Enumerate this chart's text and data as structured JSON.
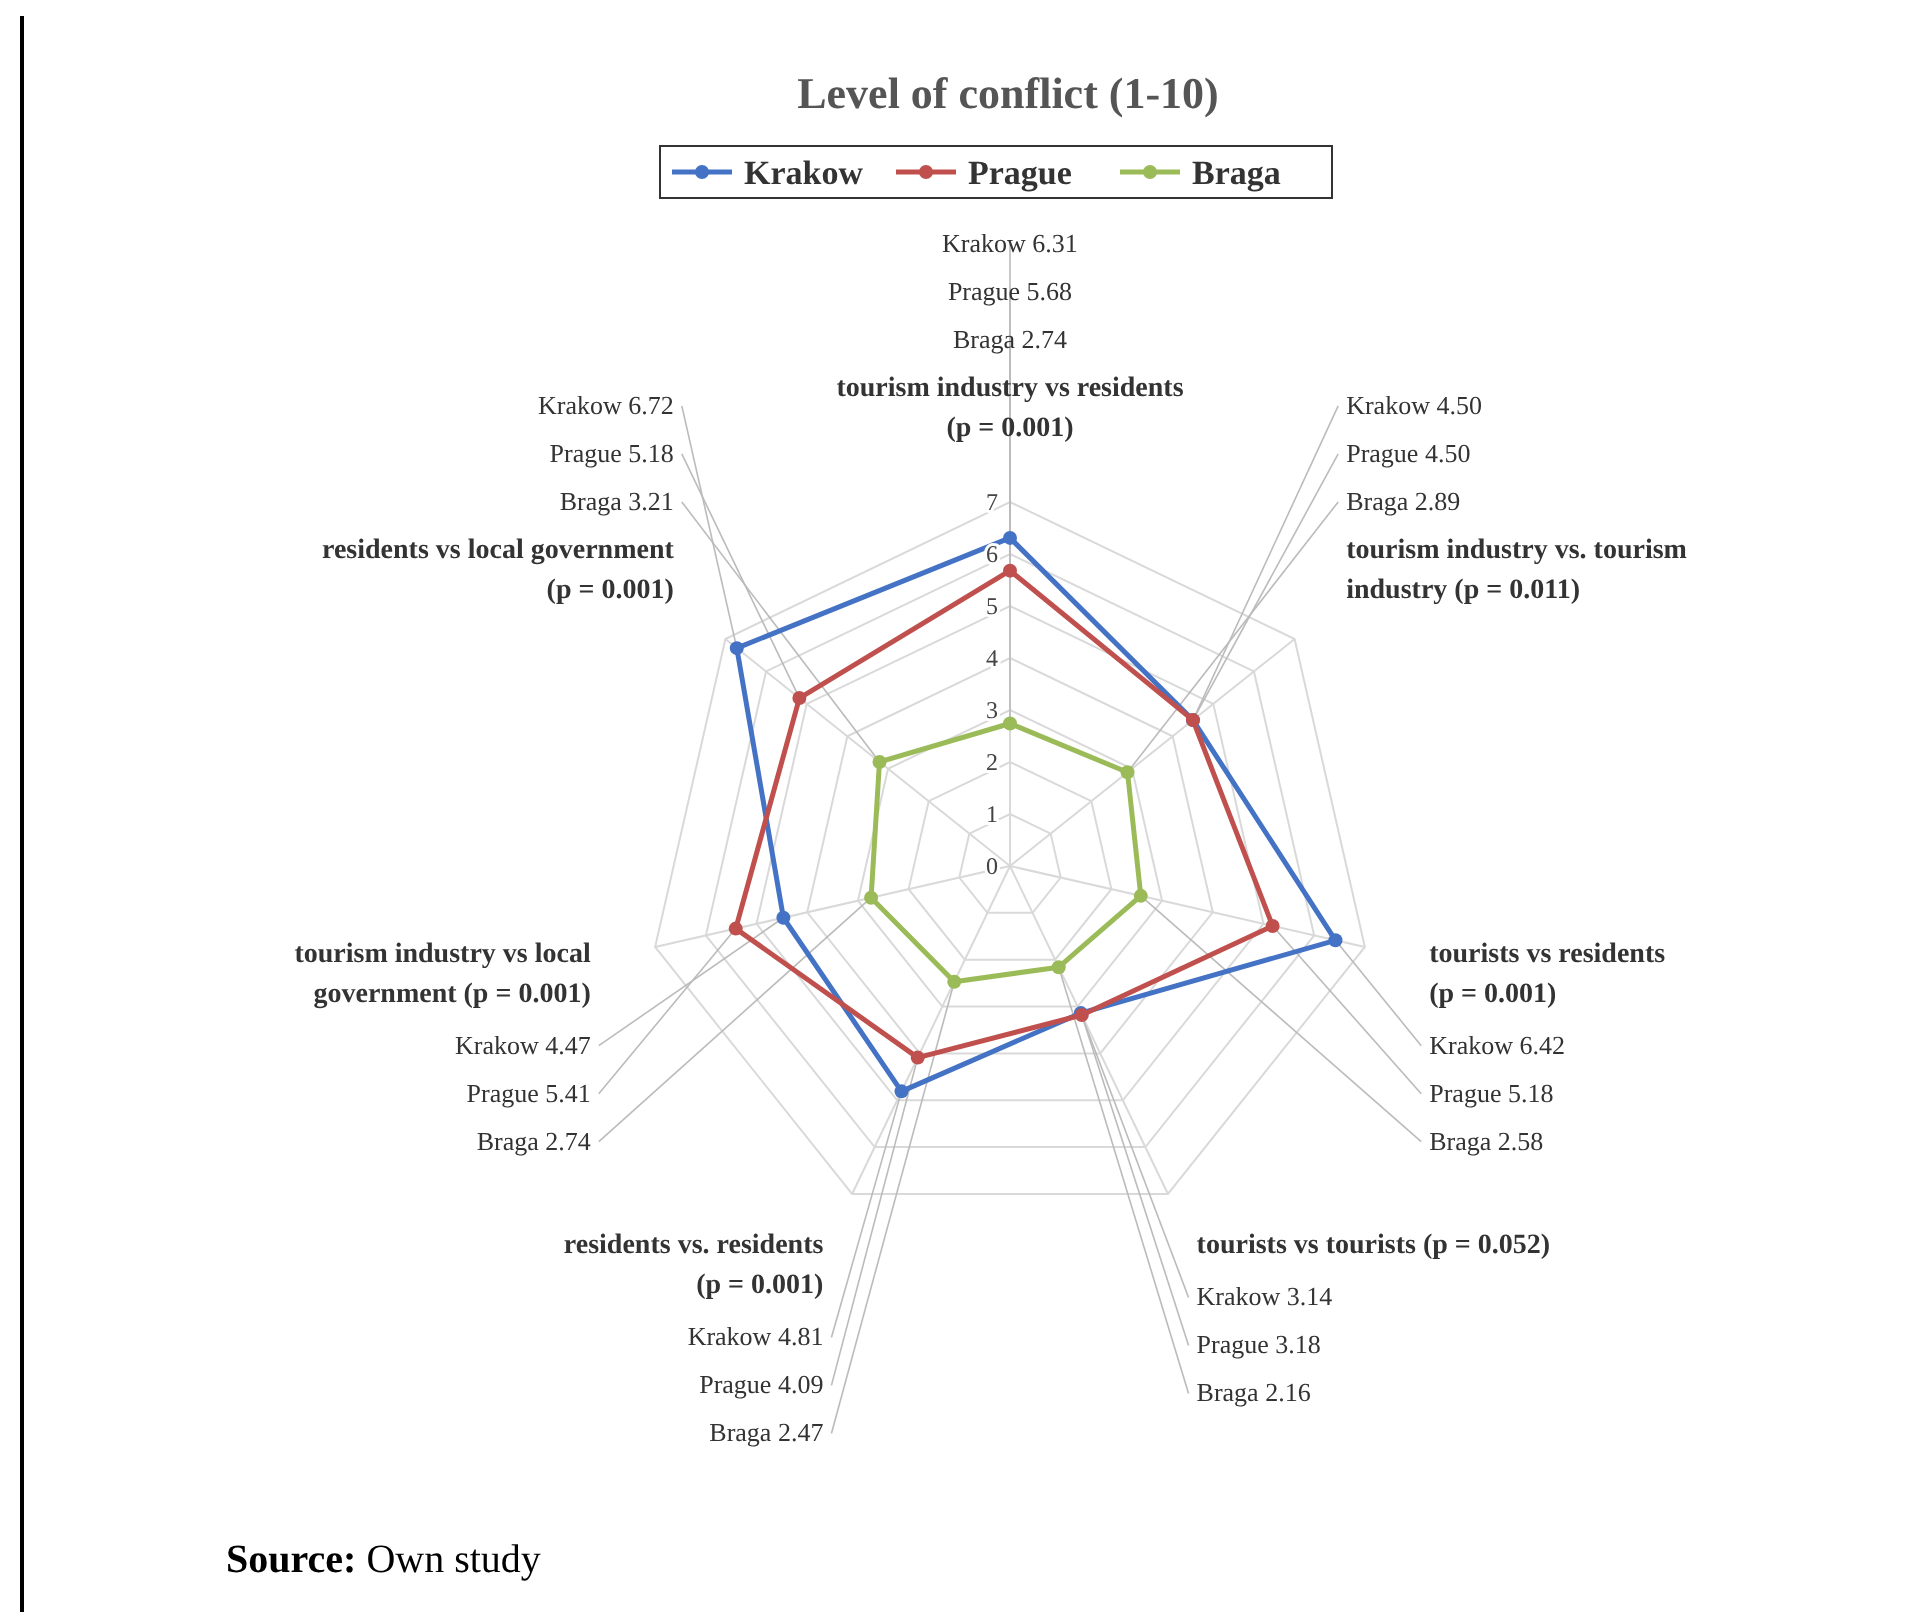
{
  "chart_data": {
    "type": "radar",
    "title": "Level of conflict (1-10)",
    "categories": [
      "tourism industry vs residents\n(p = 0.001)",
      "tourism industry vs. tourism\nindustry  (p = 0.011)",
      "tourists vs residents\n(p = 0.001)",
      "tourists vs tourists  (p = 0.052)",
      "residents vs. residents\n(p = 0.001)",
      "tourism industry vs local\ngovernment  (p = 0.001)",
      "residents vs local government\n(p = 0.001)"
    ],
    "series": [
      {
        "name": "Krakow",
        "color": "#4472c4",
        "values": [
          6.31,
          4.5,
          6.42,
          3.14,
          4.81,
          4.47,
          6.72
        ],
        "value_labels": [
          "Krakow 6.31",
          "Krakow 4.50",
          "Krakow 6.42",
          "Krakow 3.14",
          "Krakow 4.81",
          "Krakow 4.47",
          "Krakow 6.72"
        ]
      },
      {
        "name": "Prague",
        "color": "#c0504d",
        "values": [
          5.68,
          4.5,
          5.18,
          3.18,
          4.09,
          5.41,
          5.18
        ],
        "value_labels": [
          "Prague 5.68",
          "Prague 4.50",
          "Prague 5.18",
          "Prague 3.18",
          "Prague 4.09",
          "Prague 5.41",
          "Prague 5.18"
        ]
      },
      {
        "name": "Braga",
        "color": "#9bbb59",
        "values": [
          2.74,
          2.89,
          2.58,
          2.16,
          2.47,
          2.74,
          3.21
        ],
        "value_labels": [
          "Braga 2.74",
          "Braga 2.89",
          "Braga 2.58",
          "Braga 2.16",
          "Braga 2.47",
          "Braga 2.74",
          "Braga 3.21"
        ]
      }
    ],
    "ylim": [
      0,
      7
    ],
    "yticks": [
      0,
      1,
      2,
      3,
      4,
      5,
      6,
      7
    ],
    "grid": true,
    "legend": "top",
    "marker": "circle",
    "annotations": [
      "Source: Own study"
    ]
  }
}
